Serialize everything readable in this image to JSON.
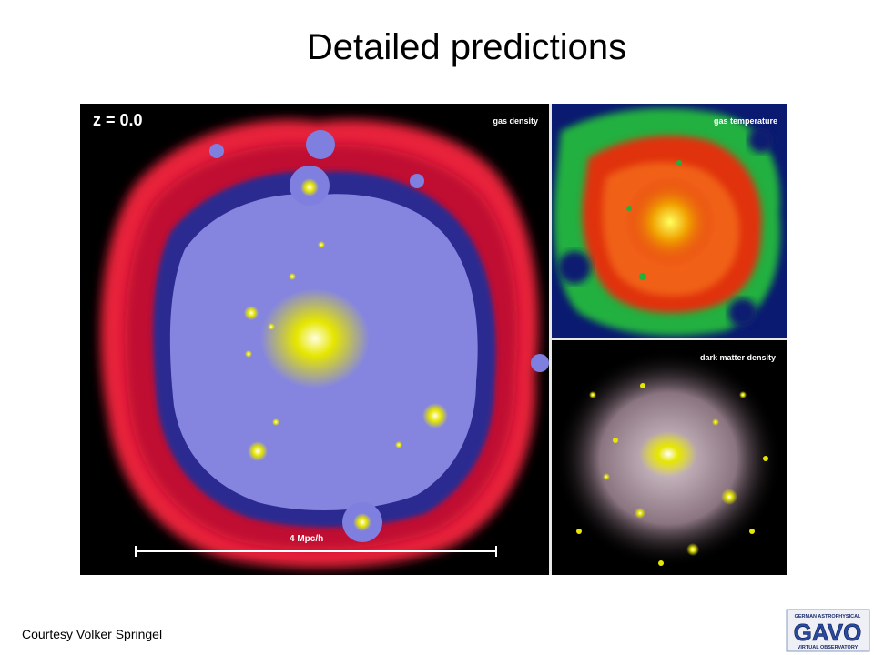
{
  "slide": {
    "title": "Detailed predictions",
    "credit": "Courtesy Volker Springel"
  },
  "panels": {
    "gas_density": {
      "redshift_label": "z =  0.0",
      "label": "gas density",
      "scale_bar_label": "4 Mpc/h"
    },
    "gas_temperature": {
      "label": "gas temperature"
    },
    "dark_matter_density": {
      "label": "dark matter density"
    }
  },
  "logo": {
    "line1": "GERMAN ASTROPHYSICAL",
    "main": "GAVO",
    "line2": "VIRTUAL OBSERVATORY"
  },
  "colors": {
    "gas_outer": "#e8203a",
    "gas_inner": "#7f7fe0",
    "core": "#e6e600",
    "temp_green": "#20b040",
    "temp_red": "#e03010",
    "dm_halo": "#b8a8b0"
  }
}
